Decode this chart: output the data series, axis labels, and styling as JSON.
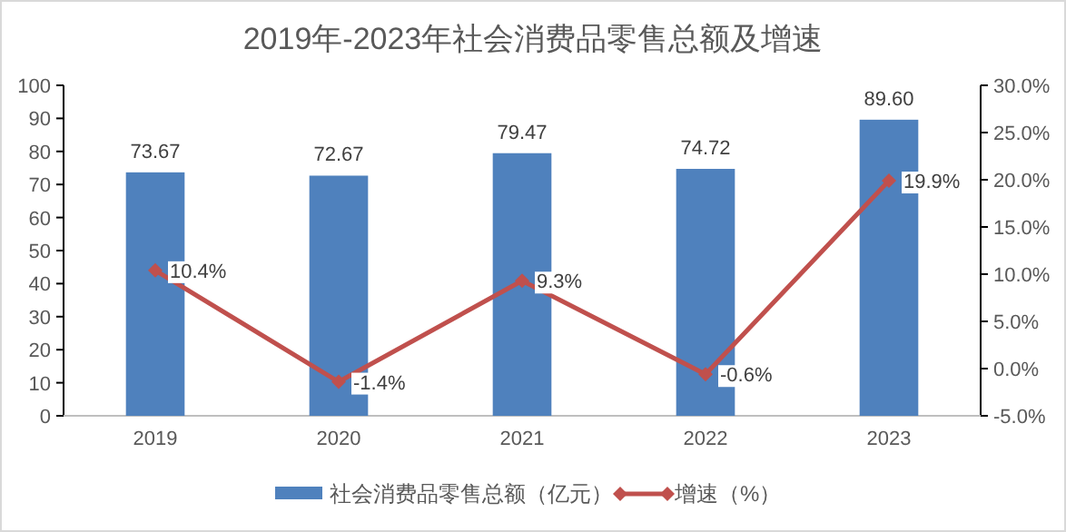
{
  "chart_data": {
    "type": "bar",
    "title": "2019年-2023年社会消费品零售总额及增速",
    "categories": [
      "2019",
      "2020",
      "2021",
      "2022",
      "2023"
    ],
    "series": [
      {
        "name": "社会消费品零售总额（亿元）",
        "color": "#4f81bd",
        "values": [
          73.67,
          72.67,
          79.47,
          74.72,
          89.6
        ],
        "value_labels": [
          "73.67",
          "72.67",
          "79.47",
          "74.72",
          "89.60"
        ]
      },
      {
        "name": "增速（%）",
        "type": "line",
        "axis": "y2",
        "color": "#c0504d",
        "marker": "diamond",
        "values": [
          10.4,
          -1.4,
          9.3,
          -0.6,
          19.9
        ],
        "value_labels": [
          "10.4%",
          "-1.4%",
          "9.3%",
          "-0.6%",
          "19.9%"
        ]
      }
    ],
    "ylim": [
      0,
      100
    ],
    "yticks": [
      0,
      10,
      20,
      30,
      40,
      50,
      60,
      70,
      80,
      90,
      100
    ],
    "y2lim": [
      -5,
      30
    ],
    "y2ticks": [
      {
        "value": -5,
        "label": "-5.0%"
      },
      {
        "value": 0,
        "label": "0.0%"
      },
      {
        "value": 5,
        "label": "5.0%"
      },
      {
        "value": 10,
        "label": "10.0%"
      },
      {
        "value": 15,
        "label": "15.0%"
      },
      {
        "value": 20,
        "label": "20.0%"
      },
      {
        "value": 25,
        "label": "25.0%"
      },
      {
        "value": 30,
        "label": "30.0%"
      }
    ],
    "legend": "bottom",
    "grid": false
  }
}
